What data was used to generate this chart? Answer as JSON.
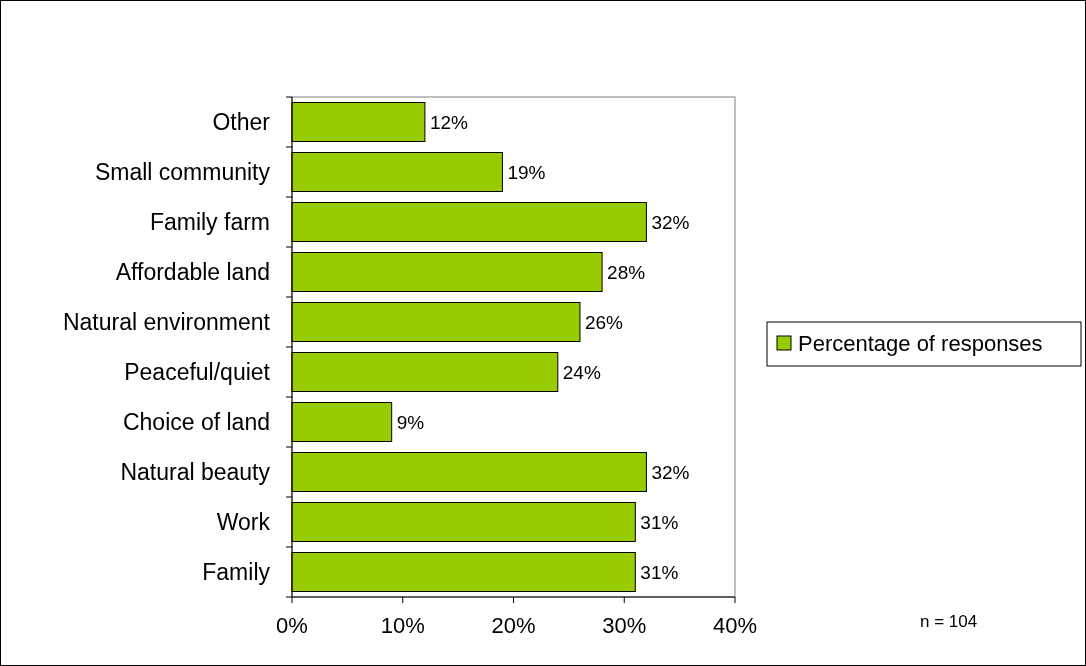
{
  "chart_data": {
    "type": "bar",
    "orientation": "horizontal",
    "categories": [
      "Other",
      "Small community",
      "Family farm",
      "Affordable land",
      "Natural environment",
      "Peaceful/quiet",
      "Choice of land",
      "Natural beauty",
      "Work",
      "Family"
    ],
    "series": [
      {
        "name": "Percentage of responses",
        "color": "#99cc00",
        "values": [
          12,
          19,
          32,
          28,
          26,
          24,
          9,
          32,
          31,
          31
        ],
        "value_labels": [
          "12%",
          "19%",
          "32%",
          "28%",
          "26%",
          "24%",
          "9%",
          "32%",
          "31%",
          "31%"
        ]
      }
    ],
    "xlim": [
      0,
      40
    ],
    "xticks": [
      {
        "value": 0,
        "label": "0%"
      },
      {
        "value": 10,
        "label": "10%"
      },
      {
        "value": 20,
        "label": "20%"
      },
      {
        "value": 30,
        "label": "30%"
      },
      {
        "value": 40,
        "label": "40%"
      }
    ],
    "legend": "right",
    "grid": false,
    "annotations": [
      "n = 104"
    ]
  }
}
